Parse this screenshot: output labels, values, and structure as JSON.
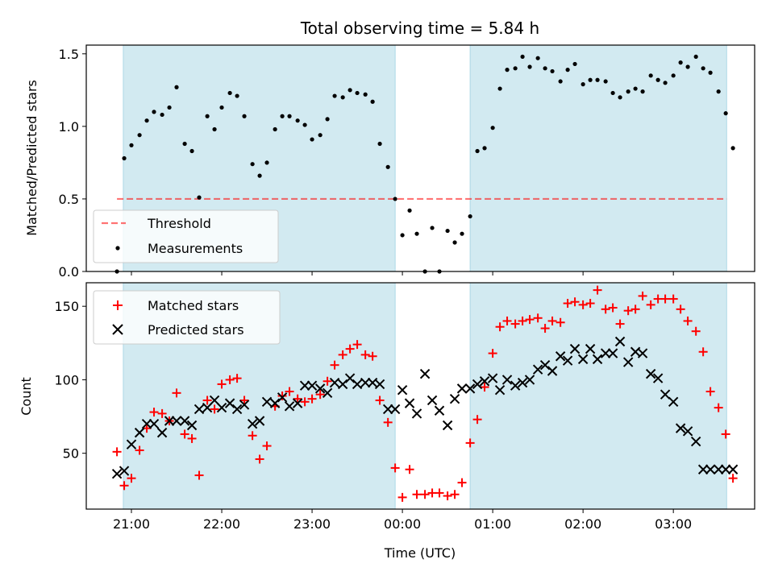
{
  "figure": {
    "title": "Total observing time = 5.84 h",
    "xlabel": "Time (UTC)",
    "x_ticks": [
      "21:00",
      "22:00",
      "23:00",
      "00:00",
      "01:00",
      "02:00",
      "03:00"
    ]
  },
  "colors": {
    "shade": "#add8e6",
    "threshold": "#ff0000",
    "measurement": "#000000",
    "matched": "#ff0000",
    "predicted": "#000000"
  },
  "chart_data": [
    {
      "type": "scatter",
      "ylabel": "Matched/Predicted stars",
      "x_unit": "hours relative to 00:00 UTC",
      "xlim": [
        -3.5,
        3.9
      ],
      "ylim": [
        0,
        1.56
      ],
      "yticks": [
        "0.0",
        "0.5",
        "1.0",
        "1.5"
      ],
      "shaded_intervals": [
        [
          -3.09,
          -0.08
        ],
        [
          0.75,
          3.59
        ]
      ],
      "threshold": {
        "label": "Threshold",
        "y": 0.5,
        "x_range": [
          -3.16,
          3.59
        ],
        "style": "dashed"
      },
      "legend": {
        "placement": "lower-left",
        "entries": [
          "Threshold",
          "Measurements"
        ]
      },
      "series": [
        {
          "name": "Measurements",
          "marker": "dot",
          "points": [
            [
              -3.16,
              0.0
            ],
            [
              -3.08,
              0.78
            ],
            [
              -3.0,
              0.87
            ],
            [
              -2.91,
              0.94
            ],
            [
              -2.83,
              1.04
            ],
            [
              -2.75,
              1.1
            ],
            [
              -2.66,
              1.08
            ],
            [
              -2.58,
              1.13
            ],
            [
              -2.5,
              1.27
            ],
            [
              -2.41,
              0.88
            ],
            [
              -2.33,
              0.83
            ],
            [
              -2.25,
              0.51
            ],
            [
              -2.16,
              1.07
            ],
            [
              -2.08,
              0.98
            ],
            [
              -2.0,
              1.13
            ],
            [
              -1.91,
              1.23
            ],
            [
              -1.83,
              1.21
            ],
            [
              -1.75,
              1.07
            ],
            [
              -1.66,
              0.74
            ],
            [
              -1.58,
              0.66
            ],
            [
              -1.5,
              0.75
            ],
            [
              -1.41,
              0.98
            ],
            [
              -1.33,
              1.07
            ],
            [
              -1.25,
              1.07
            ],
            [
              -1.16,
              1.04
            ],
            [
              -1.08,
              1.01
            ],
            [
              -1.0,
              0.91
            ],
            [
              -0.91,
              0.94
            ],
            [
              -0.83,
              1.05
            ],
            [
              -0.75,
              1.21
            ],
            [
              -0.66,
              1.2
            ],
            [
              -0.58,
              1.25
            ],
            [
              -0.5,
              1.23
            ],
            [
              -0.41,
              1.22
            ],
            [
              -0.33,
              1.17
            ],
            [
              -0.25,
              0.88
            ],
            [
              -0.16,
              0.72
            ],
            [
              -0.08,
              0.5
            ],
            [
              0.0,
              0.25
            ],
            [
              0.08,
              0.42
            ],
            [
              0.16,
              0.26
            ],
            [
              0.25,
              0.0
            ],
            [
              0.33,
              0.3
            ],
            [
              0.41,
              0.0
            ],
            [
              0.5,
              0.28
            ],
            [
              0.58,
              0.2
            ],
            [
              0.66,
              0.26
            ],
            [
              0.75,
              0.38
            ],
            [
              0.83,
              0.83
            ],
            [
              0.91,
              0.85
            ],
            [
              1.0,
              0.99
            ],
            [
              1.08,
              1.26
            ],
            [
              1.16,
              1.39
            ],
            [
              1.25,
              1.4
            ],
            [
              1.33,
              1.48
            ],
            [
              1.41,
              1.41
            ],
            [
              1.5,
              1.47
            ],
            [
              1.58,
              1.4
            ],
            [
              1.66,
              1.38
            ],
            [
              1.75,
              1.31
            ],
            [
              1.83,
              1.39
            ],
            [
              1.91,
              1.43
            ],
            [
              2.0,
              1.29
            ],
            [
              2.08,
              1.32
            ],
            [
              2.16,
              1.32
            ],
            [
              2.25,
              1.31
            ],
            [
              2.33,
              1.23
            ],
            [
              2.41,
              1.2
            ],
            [
              2.5,
              1.24
            ],
            [
              2.58,
              1.26
            ],
            [
              2.66,
              1.24
            ],
            [
              2.75,
              1.35
            ],
            [
              2.83,
              1.32
            ],
            [
              2.91,
              1.3
            ],
            [
              3.0,
              1.35
            ],
            [
              3.08,
              1.44
            ],
            [
              3.16,
              1.41
            ],
            [
              3.25,
              1.48
            ],
            [
              3.33,
              1.4
            ],
            [
              3.41,
              1.37
            ],
            [
              3.5,
              1.24
            ],
            [
              3.58,
              1.09
            ],
            [
              3.66,
              0.85
            ]
          ]
        }
      ]
    },
    {
      "type": "scatter",
      "ylabel": "Count",
      "x_unit": "hours relative to 00:00 UTC",
      "xlim": [
        -3.5,
        3.9
      ],
      "ylim": [
        12,
        166
      ],
      "yticks": [
        "50",
        "100",
        "150"
      ],
      "shaded_intervals": [
        [
          -3.09,
          -0.08
        ],
        [
          0.75,
          3.59
        ]
      ],
      "legend": {
        "placement": "upper-left",
        "entries": [
          "Matched stars",
          "Predicted stars"
        ]
      },
      "series": [
        {
          "name": "Matched stars",
          "marker": "plus",
          "points": [
            [
              -3.16,
              51
            ],
            [
              -3.08,
              28
            ],
            [
              -3.0,
              33
            ],
            [
              -2.91,
              52
            ],
            [
              -2.83,
              67
            ],
            [
              -2.75,
              78
            ],
            [
              -2.66,
              77
            ],
            [
              -2.58,
              72
            ],
            [
              -2.5,
              91
            ],
            [
              -2.41,
              63
            ],
            [
              -2.33,
              60
            ],
            [
              -2.25,
              35
            ],
            [
              -2.16,
              86
            ],
            [
              -2.08,
              80
            ],
            [
              -2.0,
              97
            ],
            [
              -1.91,
              100
            ],
            [
              -1.83,
              101
            ],
            [
              -1.75,
              86
            ],
            [
              -1.66,
              62
            ],
            [
              -1.58,
              46
            ],
            [
              -1.5,
              55
            ],
            [
              -1.41,
              82
            ],
            [
              -1.33,
              89
            ],
            [
              -1.25,
              92
            ],
            [
              -1.16,
              87
            ],
            [
              -1.08,
              85
            ],
            [
              -1.0,
              87
            ],
            [
              -0.91,
              90
            ],
            [
              -0.83,
              99
            ],
            [
              -0.75,
              110
            ],
            [
              -0.66,
              117
            ],
            [
              -0.58,
              121
            ],
            [
              -0.5,
              124
            ],
            [
              -0.41,
              117
            ],
            [
              -0.33,
              116
            ],
            [
              -0.25,
              86
            ],
            [
              -0.16,
              71
            ],
            [
              -0.08,
              40
            ],
            [
              0.0,
              20
            ],
            [
              0.08,
              39
            ],
            [
              0.16,
              22
            ],
            [
              0.25,
              22
            ],
            [
              0.33,
              23
            ],
            [
              0.41,
              23
            ],
            [
              0.5,
              21
            ],
            [
              0.58,
              22
            ],
            [
              0.66,
              30
            ],
            [
              0.75,
              57
            ],
            [
              0.83,
              73
            ],
            [
              0.91,
              95
            ],
            [
              1.0,
              118
            ],
            [
              1.08,
              136
            ],
            [
              1.16,
              140
            ],
            [
              1.25,
              138
            ],
            [
              1.33,
              140
            ],
            [
              1.41,
              141
            ],
            [
              1.5,
              142
            ],
            [
              1.58,
              135
            ],
            [
              1.66,
              140
            ],
            [
              1.75,
              139
            ],
            [
              1.83,
              152
            ],
            [
              1.91,
              153
            ],
            [
              2.0,
              151
            ],
            [
              2.08,
              152
            ],
            [
              2.16,
              161
            ],
            [
              2.25,
              148
            ],
            [
              2.33,
              149
            ],
            [
              2.41,
              138
            ],
            [
              2.5,
              147
            ],
            [
              2.58,
              148
            ],
            [
              2.66,
              157
            ],
            [
              2.75,
              151
            ],
            [
              2.83,
              155
            ],
            [
              2.91,
              155
            ],
            [
              3.0,
              155
            ],
            [
              3.08,
              148
            ],
            [
              3.16,
              140
            ],
            [
              3.25,
              133
            ],
            [
              3.33,
              119
            ],
            [
              3.41,
              92
            ],
            [
              3.5,
              81
            ],
            [
              3.58,
              63
            ],
            [
              3.66,
              33
            ]
          ]
        },
        {
          "name": "Predicted stars",
          "marker": "x",
          "points": [
            [
              -3.16,
              36
            ],
            [
              -3.08,
              38
            ],
            [
              -3.0,
              56
            ],
            [
              -2.91,
              64
            ],
            [
              -2.83,
              70
            ],
            [
              -2.75,
              70
            ],
            [
              -2.66,
              64
            ],
            [
              -2.58,
              72
            ],
            [
              -2.5,
              72
            ],
            [
              -2.41,
              72
            ],
            [
              -2.33,
              69
            ],
            [
              -2.25,
              80
            ],
            [
              -2.16,
              81
            ],
            [
              -2.08,
              86
            ],
            [
              -2.0,
              81
            ],
            [
              -1.91,
              84
            ],
            [
              -1.83,
              80
            ],
            [
              -1.75,
              83
            ],
            [
              -1.66,
              70
            ],
            [
              -1.58,
              72
            ],
            [
              -1.5,
              85
            ],
            [
              -1.41,
              84
            ],
            [
              -1.33,
              88
            ],
            [
              -1.25,
              82
            ],
            [
              -1.16,
              84
            ],
            [
              -1.08,
              96
            ],
            [
              -1.0,
              96
            ],
            [
              -0.91,
              94
            ],
            [
              -0.83,
              91
            ],
            [
              -0.75,
              98
            ],
            [
              -0.66,
              97
            ],
            [
              -0.58,
              101
            ],
            [
              -0.5,
              97
            ],
            [
              -0.41,
              98
            ],
            [
              -0.33,
              98
            ],
            [
              -0.25,
              97
            ],
            [
              -0.16,
              80
            ],
            [
              -0.08,
              80
            ],
            [
              0.0,
              93
            ],
            [
              0.08,
              84
            ],
            [
              0.16,
              77
            ],
            [
              0.25,
              104
            ],
            [
              0.33,
              86
            ],
            [
              0.41,
              79
            ],
            [
              0.5,
              69
            ],
            [
              0.58,
              87
            ],
            [
              0.66,
              94
            ],
            [
              0.75,
              94
            ],
            [
              0.83,
              97
            ],
            [
              0.91,
              99
            ],
            [
              1.0,
              101
            ],
            [
              1.08,
              93
            ],
            [
              1.16,
              100
            ],
            [
              1.25,
              96
            ],
            [
              1.33,
              98
            ],
            [
              1.41,
              100
            ],
            [
              1.5,
              107
            ],
            [
              1.58,
              110
            ],
            [
              1.66,
              106
            ],
            [
              1.75,
              116
            ],
            [
              1.83,
              113
            ],
            [
              1.91,
              121
            ],
            [
              2.0,
              114
            ],
            [
              2.08,
              121
            ],
            [
              2.16,
              114
            ],
            [
              2.25,
              118
            ],
            [
              2.33,
              118
            ],
            [
              2.41,
              126
            ],
            [
              2.5,
              112
            ],
            [
              2.58,
              119
            ],
            [
              2.66,
              118
            ],
            [
              2.75,
              104
            ],
            [
              2.83,
              101
            ],
            [
              2.91,
              90
            ],
            [
              3.0,
              85
            ],
            [
              3.08,
              67
            ],
            [
              3.16,
              65
            ],
            [
              3.25,
              58
            ],
            [
              3.33,
              39
            ],
            [
              3.41,
              39
            ],
            [
              3.5,
              39
            ],
            [
              3.58,
              39
            ],
            [
              3.66,
              39
            ]
          ]
        }
      ]
    }
  ],
  "legend_labels": {
    "threshold": "Threshold",
    "measurements": "Measurements",
    "matched": "Matched stars",
    "predicted": "Predicted stars"
  }
}
